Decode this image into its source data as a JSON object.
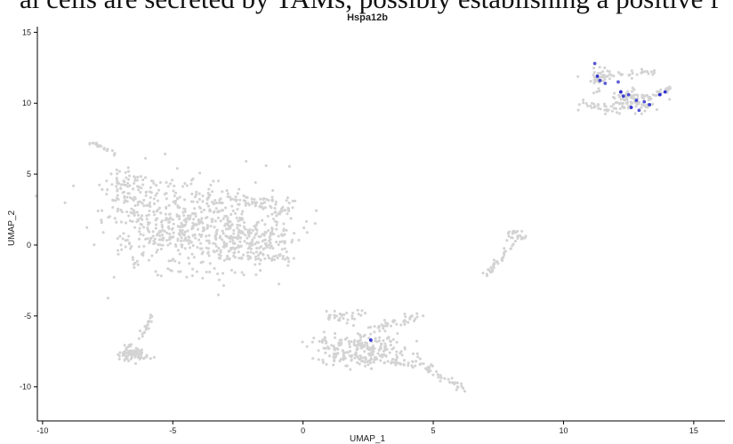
{
  "caption": {
    "text": "al cells are secreted by TAMs, possibly establishing a positive f"
  },
  "chart_data": {
    "type": "scatter",
    "title": "Hspa12b",
    "xlabel": "UMAP_1",
    "ylabel": "UMAP_2",
    "xlim": [
      -10.2,
      16.2
    ],
    "ylim": [
      -12.4,
      15.4
    ],
    "x_ticks": [
      -10,
      -5,
      0,
      5,
      10,
      15
    ],
    "y_ticks": [
      -10,
      -5,
      0,
      5,
      10,
      15
    ],
    "grid": false,
    "legend": "none",
    "colors": {
      "background": "#ffffff",
      "low_expression": "#d3d3d3",
      "high_expression": "#2b2bd4",
      "medium_expression": "#8a8ad6",
      "axis": "#000000",
      "caption": "#111111"
    },
    "clusters": [
      {
        "name": "large-left",
        "count": 820,
        "regions": [
          {
            "cx": -4.8,
            "cy": 1.1,
            "rx": 2.2,
            "ry": 2.6,
            "weight": 420
          },
          {
            "cx": -6.6,
            "cy": 3.8,
            "rx": 0.9,
            "ry": 1.4,
            "weight": 90
          },
          {
            "cx": -3.0,
            "cy": 1.0,
            "rx": 1.8,
            "ry": 2.5,
            "weight": 220
          },
          {
            "cx": -1.4,
            "cy": 0.4,
            "rx": 1.0,
            "ry": 1.2,
            "weight": 90
          }
        ],
        "arms": [
          {
            "from": [
              -8.2,
              7.3
            ],
            "to": [
              -7.1,
              6.3
            ],
            "spread": 0.12,
            "count": 20
          },
          {
            "from": [
              -3.2,
              3.5
            ],
            "to": [
              -0.6,
              2.7
            ],
            "spread": 0.35,
            "count": 45
          },
          {
            "from": [
              -2.5,
              -0.8
            ],
            "to": [
              -0.5,
              -0.8
            ],
            "spread": 0.2,
            "count": 25
          },
          {
            "from": [
              -1.0,
              2.2
            ],
            "to": [
              -0.5,
              2.8
            ],
            "spread": 0.3,
            "count": 20
          }
        ]
      },
      {
        "name": "lower-left",
        "count": 95,
        "regions": [
          {
            "cx": -6.5,
            "cy": -7.6,
            "rx": 0.45,
            "ry": 0.5,
            "weight": 70
          }
        ],
        "arms": [
          {
            "from": [
              -5.8,
              -4.9
            ],
            "to": [
              -6.3,
              -6.8
            ],
            "spread": 0.12,
            "count": 20
          },
          {
            "from": [
              -7.0,
              -7.6
            ],
            "to": [
              -6.0,
              -7.9
            ],
            "spread": 0.15,
            "count": 12
          }
        ]
      },
      {
        "name": "bottom-center",
        "count": 360,
        "regions": [
          {
            "cx": 2.4,
            "cy": -7.4,
            "rx": 1.5,
            "ry": 0.9,
            "weight": 200
          },
          {
            "cx": 1.6,
            "cy": -5.0,
            "rx": 0.6,
            "ry": 0.35,
            "weight": 30
          }
        ],
        "arms": [
          {
            "from": [
              1.0,
              -8.0
            ],
            "to": [
              4.5,
              -8.4
            ],
            "spread": 0.25,
            "count": 50
          },
          {
            "from": [
              2.3,
              -6.0
            ],
            "to": [
              4.4,
              -5.0
            ],
            "spread": 0.3,
            "count": 40
          },
          {
            "from": [
              4.5,
              -8.3
            ],
            "to": [
              6.2,
              -10.3
            ],
            "spread": 0.25,
            "count": 40
          },
          {
            "from": [
              1.1,
              -7.6
            ],
            "to": [
              0.8,
              -6.3
            ],
            "spread": 0.2,
            "count": 15
          }
        ]
      },
      {
        "name": "right-strand",
        "count": 60,
        "regions": [
          {
            "cx": 8.1,
            "cy": 0.7,
            "rx": 0.25,
            "ry": 0.3,
            "weight": 15
          }
        ],
        "arms": [
          {
            "from": [
              7.0,
              -2.2
            ],
            "to": [
              8.0,
              0.0
            ],
            "spread": 0.12,
            "count": 35
          },
          {
            "from": [
              8.0,
              1.0
            ],
            "to": [
              8.5,
              0.4
            ],
            "spread": 0.1,
            "count": 12
          }
        ]
      },
      {
        "name": "top-right",
        "count": 210,
        "regions": [
          {
            "cx": 12.6,
            "cy": 10.1,
            "rx": 0.8,
            "ry": 0.7,
            "weight": 90
          },
          {
            "cx": 11.3,
            "cy": 11.8,
            "rx": 0.3,
            "ry": 0.8,
            "weight": 35
          }
        ],
        "arms": [
          {
            "from": [
              11.3,
              12.0
            ],
            "to": [
              13.5,
              12.2
            ],
            "spread": 0.25,
            "count": 35
          },
          {
            "from": [
              10.8,
              10.0
            ],
            "to": [
              12.4,
              9.3
            ],
            "spread": 0.2,
            "count": 25
          },
          {
            "from": [
              13.0,
              10.2
            ],
            "to": [
              14.1,
              11.1
            ],
            "spread": 0.15,
            "count": 20
          }
        ]
      }
    ],
    "highlighted_points": [
      {
        "x": 11.2,
        "y": 12.8,
        "level": 0.55
      },
      {
        "x": 11.3,
        "y": 11.9,
        "level": 0.9
      },
      {
        "x": 11.4,
        "y": 11.6,
        "level": 0.7
      },
      {
        "x": 11.6,
        "y": 11.4,
        "level": 0.5
      },
      {
        "x": 12.2,
        "y": 10.8,
        "level": 1.0
      },
      {
        "x": 12.3,
        "y": 10.5,
        "level": 0.8
      },
      {
        "x": 12.5,
        "y": 10.6,
        "level": 0.6
      },
      {
        "x": 12.6,
        "y": 9.7,
        "level": 0.9
      },
      {
        "x": 12.8,
        "y": 10.2,
        "level": 0.7
      },
      {
        "x": 12.9,
        "y": 9.5,
        "level": 0.5
      },
      {
        "x": 13.1,
        "y": 10.1,
        "level": 0.6
      },
      {
        "x": 13.3,
        "y": 9.9,
        "level": 0.85
      },
      {
        "x": 13.7,
        "y": 10.6,
        "level": 1.0
      },
      {
        "x": 13.9,
        "y": 10.8,
        "level": 0.9
      },
      {
        "x": 12.1,
        "y": 11.5,
        "level": 0.45
      },
      {
        "x": 2.6,
        "y": -6.7,
        "level": 0.9
      }
    ]
  }
}
